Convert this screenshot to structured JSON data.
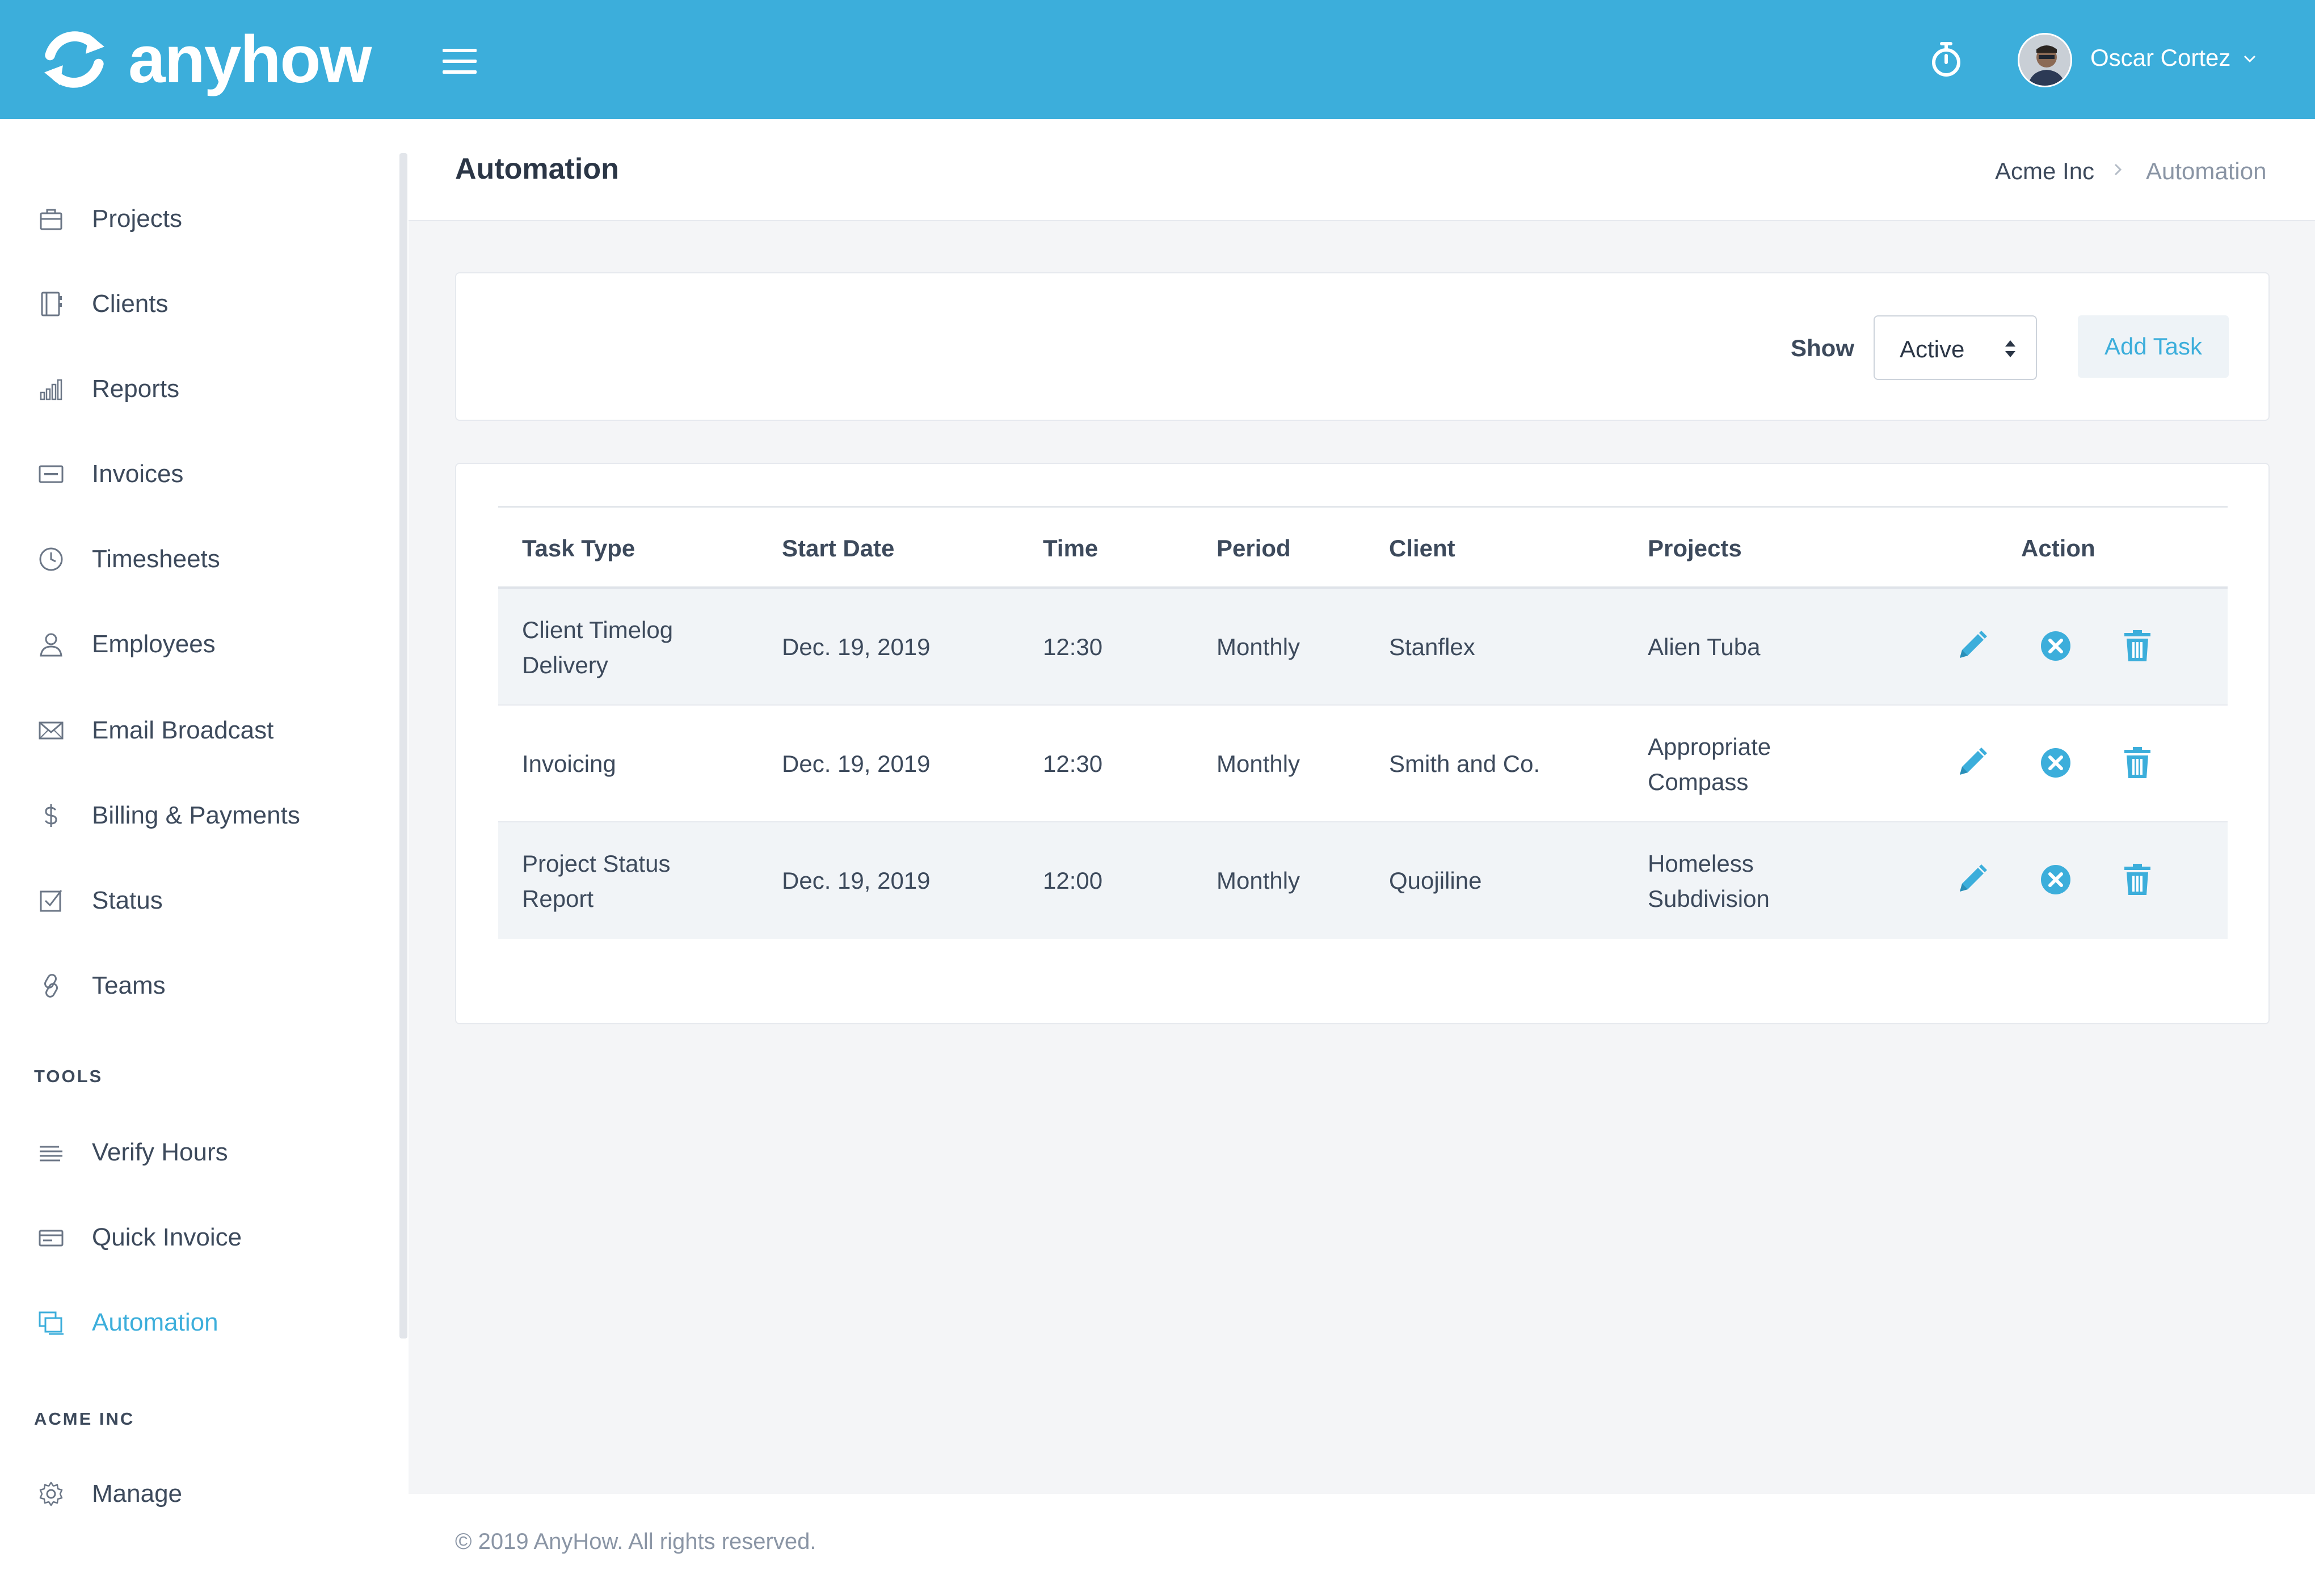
{
  "topbar": {
    "brand": "anyhow",
    "user_name": "Oscar Cortez",
    "colors": {
      "primary": "#3caedb"
    }
  },
  "sidebar": {
    "items": [
      {
        "label": "Projects",
        "icon": "briefcase-icon"
      },
      {
        "label": "Clients",
        "icon": "address-book-icon"
      },
      {
        "label": "Reports",
        "icon": "bar-chart-icon"
      },
      {
        "label": "Invoices",
        "icon": "invoice-icon"
      },
      {
        "label": "Timesheets",
        "icon": "clock-icon"
      },
      {
        "label": "Employees",
        "icon": "user-icon"
      },
      {
        "label": "Email Broadcast",
        "icon": "envelope-icon"
      },
      {
        "label": "Billing & Payments",
        "icon": "dollar-icon"
      },
      {
        "label": "Status",
        "icon": "checkbox-icon"
      },
      {
        "label": "Teams",
        "icon": "link-icon"
      }
    ],
    "tools_label": "TOOLS",
    "tools": [
      {
        "label": "Verify Hours",
        "icon": "lines-icon"
      },
      {
        "label": "Quick Invoice",
        "icon": "card-icon"
      },
      {
        "label": "Automation",
        "icon": "copy-icon",
        "active": true
      }
    ],
    "org_label": "ACME INC",
    "org": [
      {
        "label": "Manage",
        "icon": "gear-icon"
      }
    ]
  },
  "header": {
    "title": "Automation",
    "breadcrumb": [
      "Acme Inc",
      "Automation"
    ]
  },
  "filters": {
    "show_label": "Show",
    "selected": "Active",
    "add_button": "Add Task"
  },
  "table": {
    "columns": [
      "Task Type",
      "Start Date",
      "Time",
      "Period",
      "Client",
      "Projects",
      "Action"
    ],
    "rows": [
      {
        "task_type": "Client Timelog Delivery",
        "start_date": "Dec. 19, 2019",
        "time": "12:30",
        "period": "Monthly",
        "client": "Stanflex",
        "project": "Alien Tuba"
      },
      {
        "task_type": "Invoicing",
        "start_date": "Dec. 19, 2019",
        "time": "12:30",
        "period": "Monthly",
        "client": "Smith and Co.",
        "project": "Appropriate Compass"
      },
      {
        "task_type": "Project Status Report",
        "start_date": "Dec. 19, 2019",
        "time": "12:00",
        "period": "Monthly",
        "client": "Quojiline",
        "project": "Homeless Subdivision"
      }
    ]
  },
  "footer": {
    "text": "© 2019 AnyHow. All rights reserved."
  }
}
